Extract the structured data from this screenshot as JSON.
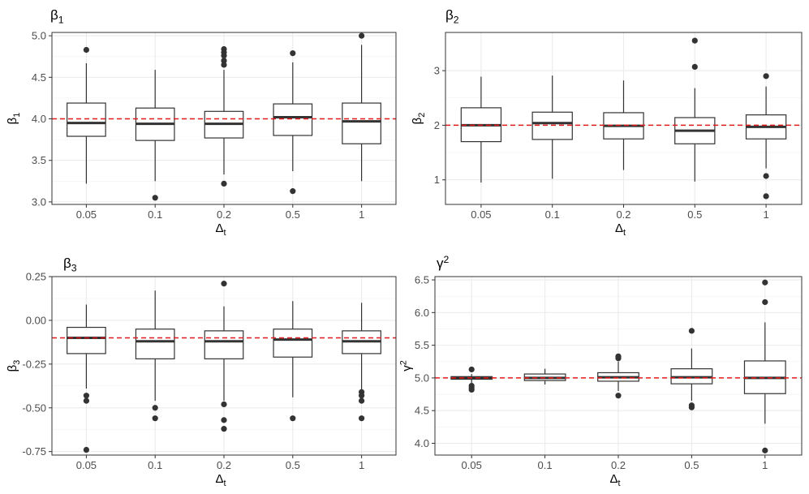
{
  "chart_data": [
    {
      "type": "boxplot",
      "title": "β",
      "title_sub": "1",
      "ylabel": "β",
      "ylabel_sub": "1",
      "xlabel": "Δ",
      "xlabel_sub": "t",
      "categories": [
        "0.05",
        "0.1",
        "0.2",
        "0.5",
        "1"
      ],
      "ylim": [
        2.97,
        5.04
      ],
      "yticks": [
        3.0,
        3.5,
        4.0,
        4.5,
        5.0
      ],
      "ytick_labels": [
        "3.0",
        "3.5",
        "4.0",
        "4.5",
        "5.0"
      ],
      "reference_line": 4.0,
      "boxes": [
        {
          "category": "0.05",
          "min": 3.22,
          "q1": 3.79,
          "median": 3.95,
          "q3": 4.19,
          "max": 4.67,
          "outliers": [
            4.83
          ]
        },
        {
          "category": "0.1",
          "min": 3.25,
          "q1": 3.74,
          "median": 3.94,
          "q3": 4.13,
          "max": 4.59,
          "outliers": [
            3.05
          ]
        },
        {
          "category": "0.2",
          "min": 3.33,
          "q1": 3.77,
          "median": 3.94,
          "q3": 4.09,
          "max": 4.59,
          "outliers": [
            3.22,
            4.65,
            4.7,
            4.76,
            4.8,
            4.84
          ]
        },
        {
          "category": "0.5",
          "min": 3.37,
          "q1": 3.8,
          "median": 4.02,
          "q3": 4.18,
          "max": 4.68,
          "outliers": [
            3.13,
            4.79
          ]
        },
        {
          "category": "1",
          "min": 3.25,
          "q1": 3.7,
          "median": 3.97,
          "q3": 4.19,
          "max": 4.89,
          "outliers": [
            5.0
          ]
        }
      ]
    },
    {
      "type": "boxplot",
      "title": "β",
      "title_sub": "2",
      "ylabel": "β",
      "ylabel_sub": "2",
      "xlabel": "Δ",
      "xlabel_sub": "t",
      "categories": [
        "0.05",
        "0.1",
        "0.2",
        "0.5",
        "1"
      ],
      "ylim": [
        0.55,
        3.7
      ],
      "yticks": [
        1,
        2,
        3
      ],
      "ytick_labels": [
        "1",
        "2",
        "3"
      ],
      "reference_line": 2.0,
      "boxes": [
        {
          "category": "0.05",
          "min": 0.95,
          "q1": 1.7,
          "median": 2.0,
          "q3": 2.32,
          "max": 2.89,
          "outliers": []
        },
        {
          "category": "0.1",
          "min": 1.02,
          "q1": 1.74,
          "median": 2.04,
          "q3": 2.24,
          "max": 2.91,
          "outliers": []
        },
        {
          "category": "0.2",
          "min": 1.18,
          "q1": 1.75,
          "median": 1.99,
          "q3": 2.23,
          "max": 2.82,
          "outliers": []
        },
        {
          "category": "0.5",
          "min": 0.97,
          "q1": 1.66,
          "median": 1.9,
          "q3": 2.14,
          "max": 2.68,
          "outliers": [
            3.07,
            3.55
          ]
        },
        {
          "category": "1",
          "min": 1.21,
          "q1": 1.75,
          "median": 1.97,
          "q3": 2.19,
          "max": 2.71,
          "outliers": [
            0.7,
            1.07,
            2.9
          ]
        }
      ]
    },
    {
      "type": "boxplot",
      "title": "β",
      "title_sub": "3",
      "ylabel": "β",
      "ylabel_sub": "3",
      "xlabel": "Δ",
      "xlabel_sub": "t",
      "categories": [
        "0.05",
        "0.1",
        "0.2",
        "0.5",
        "1"
      ],
      "ylim": [
        -0.77,
        0.25
      ],
      "yticks": [
        -0.75,
        -0.5,
        -0.25,
        0.0,
        0.25
      ],
      "ytick_labels": [
        "-0.75",
        "-0.50",
        "-0.25",
        "0.00",
        "0.25"
      ],
      "reference_line": -0.1,
      "boxes": [
        {
          "category": "0.05",
          "min": -0.39,
          "q1": -0.19,
          "median": -0.1,
          "q3": -0.04,
          "max": 0.09,
          "outliers": [
            -0.43,
            -0.46,
            -0.74
          ]
        },
        {
          "category": "0.1",
          "min": -0.46,
          "q1": -0.22,
          "median": -0.12,
          "q3": -0.05,
          "max": 0.17,
          "outliers": [
            -0.5,
            -0.56
          ]
        },
        {
          "category": "0.2",
          "min": -0.46,
          "q1": -0.22,
          "median": -0.12,
          "q3": -0.06,
          "max": 0.08,
          "outliers": [
            -0.48,
            -0.57,
            -0.62,
            0.21
          ]
        },
        {
          "category": "0.5",
          "min": -0.44,
          "q1": -0.21,
          "median": -0.11,
          "q3": -0.05,
          "max": 0.11,
          "outliers": [
            -0.56
          ]
        },
        {
          "category": "1",
          "min": -0.4,
          "q1": -0.19,
          "median": -0.12,
          "q3": -0.06,
          "max": 0.1,
          "outliers": [
            -0.41,
            -0.43,
            -0.46,
            -0.56
          ]
        }
      ]
    },
    {
      "type": "boxplot",
      "title": "γ",
      "title_sup": "2",
      "ylabel": "γ",
      "ylabel_sup": "2",
      "xlabel": "Δ",
      "xlabel_sub": "t",
      "categories": [
        "0.05",
        "0.1",
        "0.2",
        "0.5",
        "1"
      ],
      "ylim": [
        3.82,
        6.55
      ],
      "yticks": [
        4.0,
        4.5,
        5.0,
        5.5,
        6.0,
        6.5
      ],
      "ytick_labels": [
        "4.0",
        "4.5",
        "5.0",
        "5.5",
        "6.0",
        "6.5"
      ],
      "reference_line": 5.0,
      "boxes": [
        {
          "category": "0.05",
          "min": 4.92,
          "q1": 4.98,
          "median": 5.0,
          "q3": 5.02,
          "max": 5.06,
          "outliers": [
            4.82,
            4.85,
            4.88,
            5.13
          ]
        },
        {
          "category": "0.1",
          "min": 4.9,
          "q1": 4.96,
          "median": 5.0,
          "q3": 5.06,
          "max": 5.14,
          "outliers": []
        },
        {
          "category": "0.2",
          "min": 4.8,
          "q1": 4.95,
          "median": 5.01,
          "q3": 5.08,
          "max": 5.25,
          "outliers": [
            4.73,
            5.3,
            5.33
          ]
        },
        {
          "category": "0.5",
          "min": 4.65,
          "q1": 4.91,
          "median": 5.01,
          "q3": 5.14,
          "max": 5.45,
          "outliers": [
            4.55,
            4.58,
            5.72
          ]
        },
        {
          "category": "1",
          "min": 4.3,
          "q1": 4.76,
          "median": 5.0,
          "q3": 5.26,
          "max": 5.85,
          "outliers": [
            3.89,
            6.16,
            6.46
          ]
        }
      ]
    }
  ],
  "colors": {
    "reference_line": "#e31a1c",
    "box_stroke": "#333333",
    "grid": "#ebebeb"
  }
}
